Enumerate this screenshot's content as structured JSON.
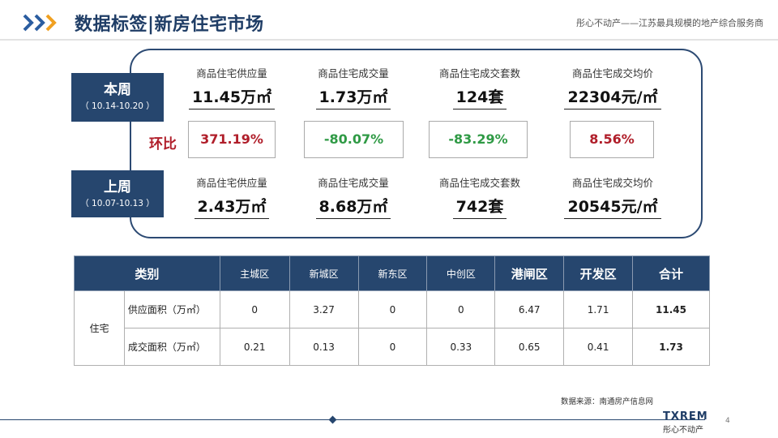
{
  "header": {
    "title": "数据标签|新房住宅市场",
    "tagline": "彤心不动产——江苏最具规模的地产综合服务商"
  },
  "current_period": {
    "label": "本周",
    "range": "（ 10.14-10.20 ）",
    "metrics": [
      {
        "label": "商品住宅供应量",
        "value": "11.45万㎡"
      },
      {
        "label": "商品住宅成交量",
        "value": "1.73万㎡"
      },
      {
        "label": "商品住宅成交套数",
        "value": "124套"
      },
      {
        "label": "商品住宅成交均价",
        "value": "22304元/㎡"
      }
    ]
  },
  "ratio": {
    "heading": "环比",
    "values": [
      "371.19%",
      "-80.07%",
      "-83.29%",
      "8.56%"
    ]
  },
  "previous_period": {
    "label": "上周",
    "range": "（ 10.07-10.13 ）",
    "metrics": [
      {
        "label": "商品住宅供应量",
        "value": "2.43万㎡"
      },
      {
        "label": "商品住宅成交量",
        "value": "8.68万㎡"
      },
      {
        "label": "商品住宅成交套数",
        "value": "742套"
      },
      {
        "label": "商品住宅成交均价",
        "value": "20545元/㎡"
      }
    ]
  },
  "table": {
    "headers": [
      "类别",
      "主城区",
      "新城区",
      "新东区",
      "中创区",
      "港闸区",
      "开发区",
      "合计"
    ],
    "group_label": "住宅",
    "rows": [
      {
        "label": "供应面积（万㎡）",
        "values": [
          "0",
          "3.27",
          "0",
          "0",
          "6.47",
          "1.71"
        ],
        "total": "11.45"
      },
      {
        "label": "成交面积（万㎡）",
        "values": [
          "0.21",
          "0.13",
          "0",
          "0.33",
          "0.65",
          "0.41"
        ],
        "total": "1.73"
      }
    ]
  },
  "footer": {
    "source": "数据来源：南通房产信息网",
    "brand": "TXREM",
    "brand_sub": "彤心不动产",
    "page_number": "4"
  },
  "colors": {
    "navy": "#26466e",
    "up": "#b01e2a",
    "down": "#2f9a45"
  }
}
